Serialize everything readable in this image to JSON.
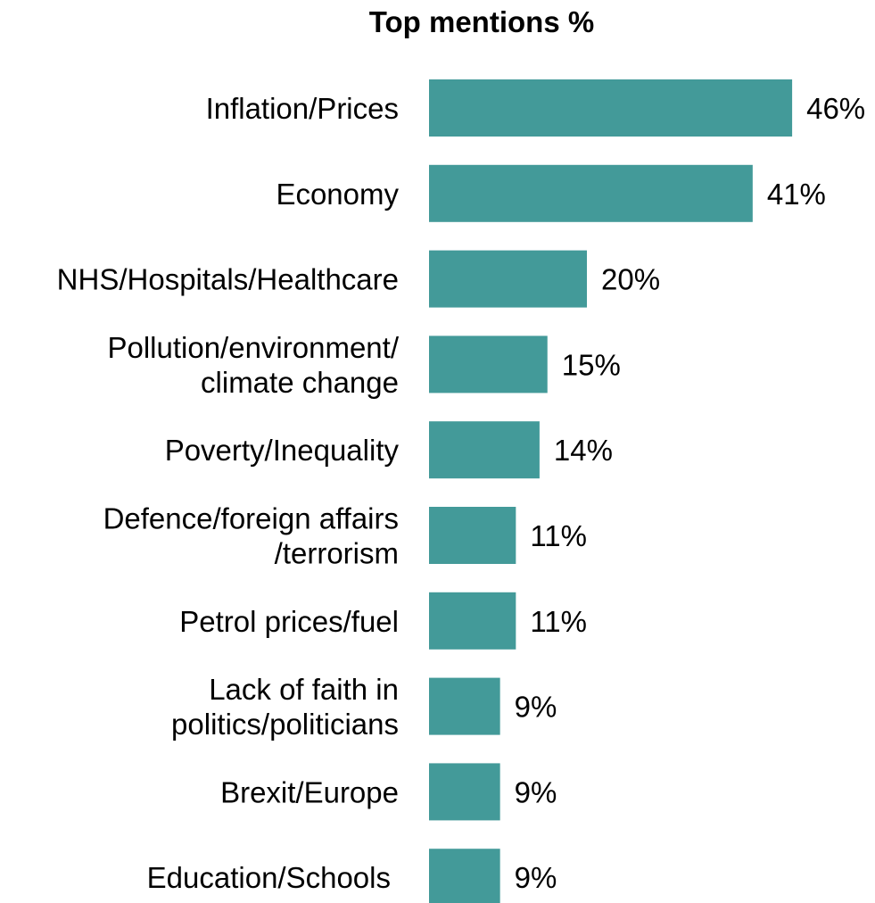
{
  "chart_data": {
    "type": "bar",
    "orientation": "horizontal",
    "title": "Top mentions %",
    "xlabel": "",
    "ylabel": "",
    "grid": false,
    "bar_color": "#439a99",
    "xlim": [
      0,
      46
    ],
    "categories": [
      "Inflation/Prices",
      "Economy",
      "NHS/Hospitals/Healthcare",
      "Pollution/environment/\nclimate change",
      "Poverty/Inequality",
      "Defence/foreign affairs\n/terrorism",
      "Petrol prices/fuel",
      "Lack of faith in\npolitics/politicians",
      "Brexit/Europe",
      "Education/Schools"
    ],
    "values": [
      46,
      41,
      20,
      15,
      14,
      11,
      11,
      9,
      9,
      9
    ],
    "value_labels": [
      "46%",
      "41%",
      "20%",
      "15%",
      "14%",
      "11%",
      "11%",
      "9%",
      "9%",
      "9%"
    ]
  }
}
